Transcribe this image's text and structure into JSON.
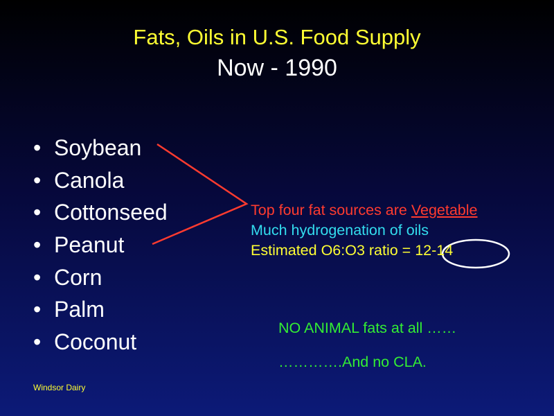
{
  "slide": {
    "title_line1": "Fats, Oils in U.S. Food Supply",
    "title_line2": "Now - 1990",
    "oils": [
      "Soybean",
      "Canola",
      "Cottonseed",
      "Peanut",
      "Corn",
      "Palm",
      "Coconut"
    ],
    "bullet": "•",
    "notes": {
      "line1_prefix": "Top four fat sources are ",
      "line1_emphasis": "Vegetable",
      "line2": "Much hydrogenation of oils",
      "line3_prefix": "Estimated O6:O3 ratio = ",
      "line3_value": "12-14"
    },
    "closing_line1": "NO ANIMAL fats at all ……",
    "closing_line2": "………….And no CLA.",
    "footer": "Windsor  Dairy"
  },
  "colors": {
    "title": "#ffff33",
    "subtitle": "#ffffff",
    "bracket": "#ff3b2f",
    "cyan": "#33ddee",
    "green": "#33ee33",
    "circle": "#ffffff"
  }
}
